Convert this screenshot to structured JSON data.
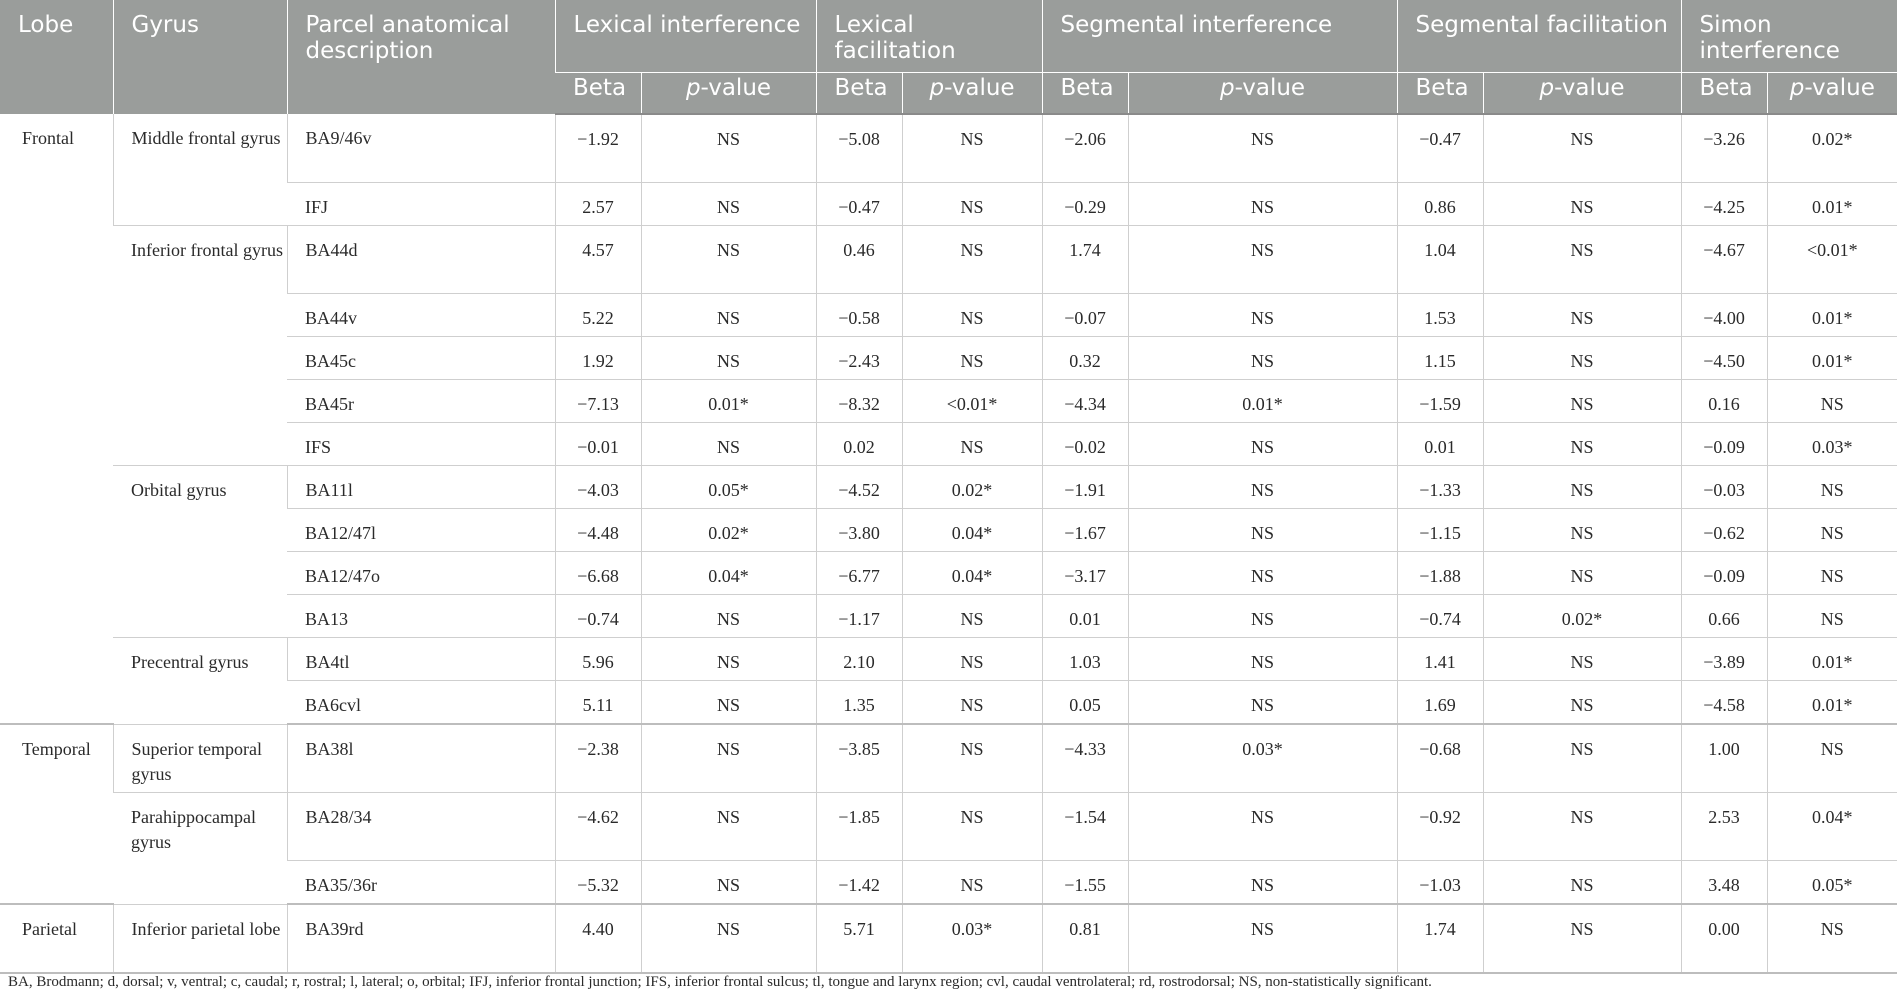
{
  "header": {
    "lobe": "Lobe",
    "gyrus": "Gyrus",
    "parcel": "Parcel anatomical description",
    "groups": [
      "Lexical interference",
      "Lexical facilitation",
      "Segmental interference",
      "Segmental facilitation",
      "Simon interference"
    ],
    "beta": "Beta",
    "p_prefix": "p",
    "p_suffix": "-value"
  },
  "rows": [
    {
      "lobe": "Frontal",
      "gyrus": "Middle frontal gyrus",
      "parcel": "BA9/46v",
      "vals": [
        "−1.92",
        "NS",
        "−5.08",
        "NS",
        "−2.06",
        "NS",
        "−0.47",
        "NS",
        "−3.26",
        "0.02*"
      ]
    },
    {
      "lobe": "",
      "gyrus": "",
      "parcel": "IFJ",
      "vals": [
        "2.57",
        "NS",
        "−0.47",
        "NS",
        "−0.29",
        "NS",
        "0.86",
        "NS",
        "−4.25",
        "0.01*"
      ]
    },
    {
      "lobe": "",
      "gyrus": "Inferior frontal gyrus",
      "parcel": "BA44d",
      "vals": [
        "4.57",
        "NS",
        "0.46",
        "NS",
        "1.74",
        "NS",
        "1.04",
        "NS",
        "−4.67",
        "<0.01*"
      ]
    },
    {
      "lobe": "",
      "gyrus": "",
      "parcel": "BA44v",
      "vals": [
        "5.22",
        "NS",
        "−0.58",
        "NS",
        "−0.07",
        "NS",
        "1.53",
        "NS",
        "−4.00",
        "0.01*"
      ]
    },
    {
      "lobe": "",
      "gyrus": "",
      "parcel": "BA45c",
      "vals": [
        "1.92",
        "NS",
        "−2.43",
        "NS",
        "0.32",
        "NS",
        "1.15",
        "NS",
        "−4.50",
        "0.01*"
      ]
    },
    {
      "lobe": "",
      "gyrus": "",
      "parcel": "BA45r",
      "vals": [
        "−7.13",
        "0.01*",
        "−8.32",
        "<0.01*",
        "−4.34",
        "0.01*",
        "−1.59",
        "NS",
        "0.16",
        "NS"
      ]
    },
    {
      "lobe": "",
      "gyrus": "",
      "parcel": "IFS",
      "vals": [
        "−0.01",
        "NS",
        "0.02",
        "NS",
        "−0.02",
        "NS",
        "0.01",
        "NS",
        "−0.09",
        "0.03*"
      ]
    },
    {
      "lobe": "",
      "gyrus": "Orbital gyrus",
      "parcel": "BA11l",
      "vals": [
        "−4.03",
        "0.05*",
        "−4.52",
        "0.02*",
        "−1.91",
        "NS",
        "−1.33",
        "NS",
        "−0.03",
        "NS"
      ]
    },
    {
      "lobe": "",
      "gyrus": "",
      "parcel": "BA12/47l",
      "vals": [
        "−4.48",
        "0.02*",
        "−3.80",
        "0.04*",
        "−1.67",
        "NS",
        "−1.15",
        "NS",
        "−0.62",
        "NS"
      ]
    },
    {
      "lobe": "",
      "gyrus": "",
      "parcel": "BA12/47o",
      "vals": [
        "−6.68",
        "0.04*",
        "−6.77",
        "0.04*",
        "−3.17",
        "NS",
        "−1.88",
        "NS",
        "−0.09",
        "NS"
      ]
    },
    {
      "lobe": "",
      "gyrus": "",
      "parcel": "BA13",
      "vals": [
        "−0.74",
        "NS",
        "−1.17",
        "NS",
        "0.01",
        "NS",
        "−0.74",
        "0.02*",
        "0.66",
        "NS"
      ]
    },
    {
      "lobe": "",
      "gyrus": "Precentral gyrus",
      "parcel": "BA4tl",
      "vals": [
        "5.96",
        "NS",
        "2.10",
        "NS",
        "1.03",
        "NS",
        "1.41",
        "NS",
        "−3.89",
        "0.01*"
      ]
    },
    {
      "lobe": "",
      "gyrus": "",
      "parcel": "BA6cvl",
      "vals": [
        "5.11",
        "NS",
        "1.35",
        "NS",
        "0.05",
        "NS",
        "1.69",
        "NS",
        "−4.58",
        "0.01*"
      ]
    },
    {
      "lobe": "Temporal",
      "gyrus": "Superior temporal gyrus",
      "parcel": "BA38l",
      "vals": [
        "−2.38",
        "NS",
        "−3.85",
        "NS",
        "−4.33",
        "0.03*",
        "−0.68",
        "NS",
        "1.00",
        "NS"
      ]
    },
    {
      "lobe": "",
      "gyrus": "Parahippocampal gyrus",
      "parcel": "BA28/34",
      "vals": [
        "−4.62",
        "NS",
        "−1.85",
        "NS",
        "−1.54",
        "NS",
        "−0.92",
        "NS",
        "2.53",
        "0.04*"
      ]
    },
    {
      "lobe": "",
      "gyrus": "",
      "parcel": "BA35/36r",
      "vals": [
        "−5.32",
        "NS",
        "−1.42",
        "NS",
        "−1.55",
        "NS",
        "−1.03",
        "NS",
        "3.48",
        "0.05*"
      ]
    },
    {
      "lobe": "Parietal",
      "gyrus": "Inferior parietal lobe",
      "parcel": "BA39rd",
      "vals": [
        "4.40",
        "NS",
        "5.71",
        "0.03*",
        "0.81",
        "NS",
        "1.74",
        "NS",
        "0.00",
        "NS"
      ]
    }
  ],
  "footnote": "BA, Brodmann; d, dorsal; v, ventral; c, caudal; r, rostral; l, lateral; o, orbital; IFJ, inferior frontal junction; IFS, inferior frontal sulcus; tl, tongue and larynx region; cvl, caudal ventrolateral; rd, rostrodorsal; NS, non-statistically significant."
}
